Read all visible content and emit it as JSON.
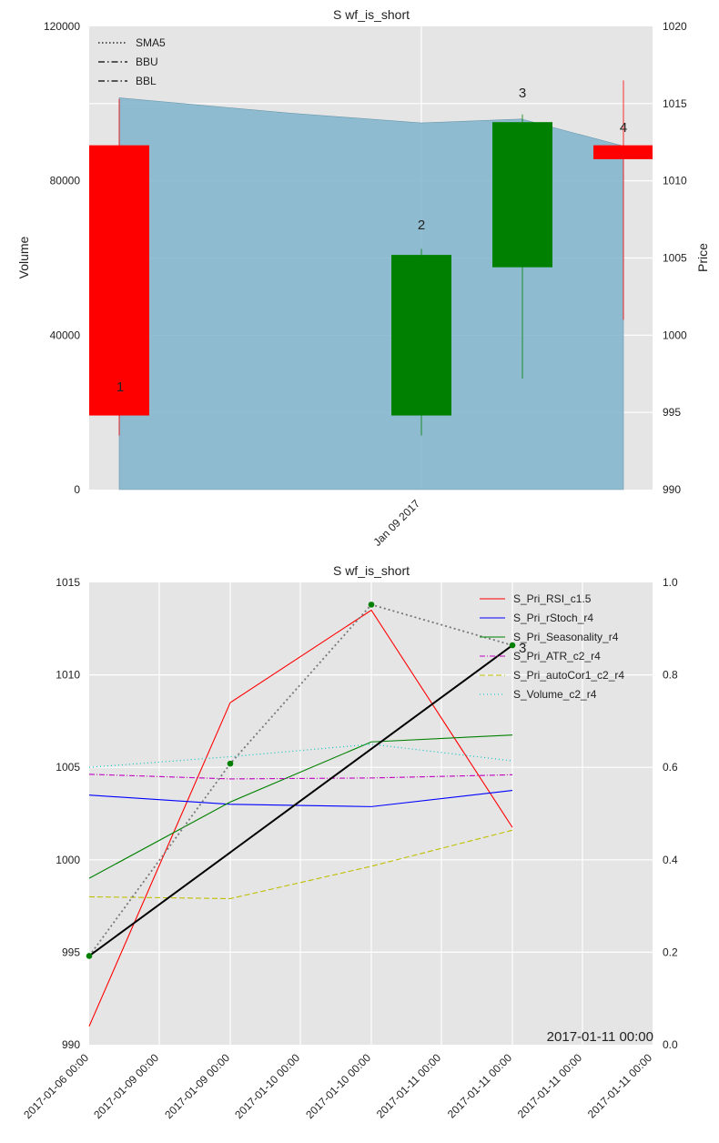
{
  "figure": {
    "top_panel": {
      "title": "S wf_is_short",
      "ylabel_left": "Volume",
      "ylabel_right": "Price",
      "left_ticks": [
        "0",
        "40000",
        "80000",
        "120000"
      ],
      "right_ticks": [
        "990",
        "995",
        "1000",
        "1005",
        "1010",
        "1015",
        "1020"
      ],
      "x_tick_label": "Jan 09 2017",
      "legend": [
        {
          "label": "SMA5",
          "style": "dotted"
        },
        {
          "label": "BBU",
          "style": "dashdot"
        },
        {
          "label": "BBL",
          "style": "dashdot"
        }
      ],
      "annotations": [
        "1",
        "2",
        "3",
        "4"
      ]
    },
    "bottom_panel": {
      "title": "S wf_is_short",
      "left_ticks": [
        "990",
        "995",
        "1000",
        "1005",
        "1010",
        "1015"
      ],
      "right_ticks": [
        "0.0",
        "0.2",
        "0.4",
        "0.6",
        "0.8",
        "1.0"
      ],
      "x_tick_labels": [
        "2017-01-06 00:00",
        "2017-01-09 00:00",
        "2017-01-09 00:00",
        "2017-01-10 00:00",
        "2017-01-10 00:00",
        "2017-01-11 00:00",
        "2017-01-11 00:00",
        "2017-01-11 00:00",
        "2017-01-11 00:00"
      ],
      "corner_text": "2017-01-11 00:00",
      "point_annotation": "3",
      "legend": [
        {
          "label": "S_Pri_RSI_c1.5",
          "color": "#ff0000",
          "dash": ""
        },
        {
          "label": "S_Pri_rStoch_r4",
          "color": "#0000ff",
          "dash": ""
        },
        {
          "label": "S_Pri_Seasonality_r4",
          "color": "#008000",
          "dash": ""
        },
        {
          "label": "S_Pri_ATR_c2_r4",
          "color": "#bf00bf",
          "dash": "6,2,1,2"
        },
        {
          "label": "S_Pri_autoCor1_c2_r4",
          "color": "#bfbf00",
          "dash": "6,3"
        },
        {
          "label": "S_Volume_c2_r4",
          "color": "#00bfbf",
          "dash": "1,3"
        }
      ]
    }
  },
  "chart_data": [
    {
      "type": "candlestick",
      "title": "S wf_is_short",
      "ylabel": "Volume",
      "ylabel_right": "Price",
      "ylim": [
        0,
        120000
      ],
      "ylim_right": [
        990,
        1020
      ],
      "volume_area": [
        101500,
        99500,
        97500,
        95000,
        96000,
        89000
      ],
      "candles": [
        {
          "label": "1",
          "open": 1012.3,
          "close": 994.8,
          "high": 1015.3,
          "low": 993.5,
          "color": "#ff0000"
        },
        {
          "label": "2",
          "open": 994.8,
          "close": 1005.2,
          "high": 1005.6,
          "low": 993.5,
          "color": "#008000"
        },
        {
          "label": "3",
          "open": 1004.4,
          "close": 1013.8,
          "high": 1014.3,
          "low": 997.2,
          "color": "#008000"
        },
        {
          "label": "4",
          "open": 1012.3,
          "close": 1011.4,
          "high": 1016.5,
          "low": 1001.0,
          "color": "#ff0000"
        }
      ],
      "legend": [
        "SMA5",
        "BBU",
        "BBL"
      ],
      "grid": true
    },
    {
      "type": "line",
      "title": "S wf_is_short",
      "ylim": [
        990,
        1015
      ],
      "ylim_right": [
        0.0,
        1.0
      ],
      "x": [
        "2017-01-06 00:00",
        "2017-01-09 00:00",
        "2017-01-10 00:00",
        "2017-01-11 00:00"
      ],
      "price_series": {
        "values": [
          994.8,
          1005.2,
          1013.8,
          1011.6
        ],
        "style": "dotted"
      },
      "trend_line": {
        "from": 994.8,
        "to": 1011.6
      },
      "series": [
        {
          "name": "S_Pri_RSI_c1.5",
          "values": [
            0.04,
            0.74,
            0.94,
            0.47
          ]
        },
        {
          "name": "S_Pri_rStoch_r4",
          "values": [
            0.54,
            0.52,
            0.515,
            0.55
          ]
        },
        {
          "name": "S_Pri_Seasonality_r4",
          "values": [
            0.36,
            0.525,
            0.655,
            0.67
          ]
        },
        {
          "name": "S_Pri_ATR_c2_r4",
          "values": [
            0.585,
            0.575,
            0.577,
            0.584
          ]
        },
        {
          "name": "S_Pri_autoCor1_c2_r4",
          "values": [
            0.32,
            0.316,
            0.386,
            0.464
          ]
        },
        {
          "name": "S_Volume_c2_r4",
          "values": [
            0.6,
            0.623,
            0.65,
            0.614
          ]
        }
      ],
      "legend_position": "top-right",
      "grid": true
    }
  ]
}
